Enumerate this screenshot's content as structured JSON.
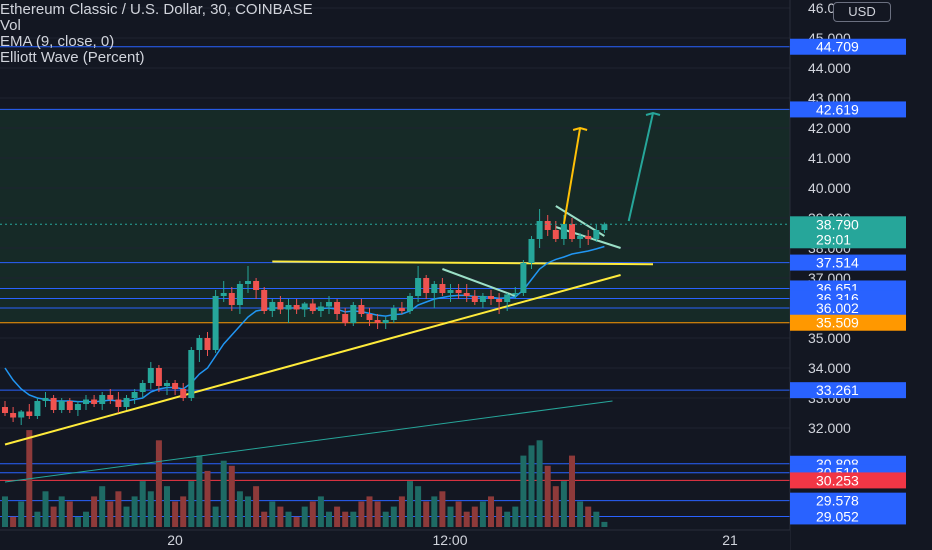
{
  "legend": {
    "title": "Ethereum Classic / U.S. Dollar, 30, COINBASE",
    "vol": "Vol",
    "ema": "EMA (9, close, 0)",
    "elliott": "Elliott Wave (Percent)"
  },
  "currency_button": "USD",
  "colors": {
    "background": "#131722",
    "highlight_zone": "#162a27",
    "up": "#26a69a",
    "down": "#ef5350",
    "hline_blue": "#2962ff",
    "hline_orange": "#ff9800",
    "trend_yellow": "#ffeb3b",
    "ema_blue": "#2196f3",
    "vol_up": "#1e6b65",
    "vol_down": "#8e3a3a"
  },
  "chart_data": {
    "type": "candlestick",
    "symbol": "Ethereum Classic / U.S. Dollar",
    "interval": "30",
    "exchange": "COINBASE",
    "x_ticks": [
      "20",
      "12:00",
      "21"
    ],
    "y_ticks": [
      "32.000",
      "33.000",
      "34.000",
      "35.000",
      "36.000",
      "37.000",
      "38.000",
      "39.000",
      "40.000",
      "41.000",
      "42.000",
      "43.000",
      "44.000",
      "45.000",
      "46.000"
    ],
    "ylim": [
      29.0,
      45.9
    ],
    "current_price": "38.790",
    "countdown": "29:01",
    "price_levels": [
      {
        "label": "44.709",
        "value": 44.709,
        "color": "#2962ff"
      },
      {
        "label": "42.619",
        "value": 42.619,
        "color": "#2962ff"
      },
      {
        "label": "37.514",
        "value": 37.514,
        "color": "#2962ff"
      },
      {
        "label": "36.651",
        "value": 36.651,
        "color": "#2962ff"
      },
      {
        "label": "36.316",
        "value": 36.316,
        "color": "#2962ff"
      },
      {
        "label": "36.002",
        "value": 36.002,
        "color": "#2962ff"
      },
      {
        "label": "35.509",
        "value": 35.509,
        "color": "#ff9800"
      },
      {
        "label": "33.261",
        "value": 33.261,
        "color": "#2962ff"
      },
      {
        "label": "30.808",
        "value": 30.808,
        "color": "#2962ff"
      },
      {
        "label": "30.510",
        "value": 30.51,
        "color": "#2962ff"
      },
      {
        "label": "30.253",
        "value": 30.253,
        "color": "#f23645"
      },
      {
        "label": "29.578",
        "value": 29.578,
        "color": "#2962ff"
      },
      {
        "label": "29.052",
        "value": 29.052,
        "color": "#2962ff"
      }
    ],
    "candles": [
      {
        "o": 32.7,
        "h": 32.9,
        "l": 32.4,
        "c": 32.5
      },
      {
        "o": 32.5,
        "h": 32.7,
        "l": 32.2,
        "c": 32.35
      },
      {
        "o": 32.35,
        "h": 32.6,
        "l": 32.1,
        "c": 32.55
      },
      {
        "o": 32.55,
        "h": 32.8,
        "l": 32.3,
        "c": 32.4
      },
      {
        "o": 32.4,
        "h": 33.0,
        "l": 32.3,
        "c": 32.9
      },
      {
        "o": 32.9,
        "h": 33.2,
        "l": 32.7,
        "c": 33.0
      },
      {
        "o": 33.0,
        "h": 33.1,
        "l": 32.5,
        "c": 32.6
      },
      {
        "o": 32.6,
        "h": 33.0,
        "l": 32.5,
        "c": 32.9
      },
      {
        "o": 32.9,
        "h": 33.0,
        "l": 32.5,
        "c": 32.6
      },
      {
        "o": 32.6,
        "h": 32.9,
        "l": 32.4,
        "c": 32.8
      },
      {
        "o": 32.8,
        "h": 33.1,
        "l": 32.6,
        "c": 32.95
      },
      {
        "o": 32.95,
        "h": 33.1,
        "l": 32.7,
        "c": 32.8
      },
      {
        "o": 32.8,
        "h": 33.2,
        "l": 32.6,
        "c": 33.1
      },
      {
        "o": 33.1,
        "h": 33.3,
        "l": 32.8,
        "c": 32.95
      },
      {
        "o": 32.95,
        "h": 33.2,
        "l": 32.5,
        "c": 32.7
      },
      {
        "o": 32.7,
        "h": 33.1,
        "l": 32.6,
        "c": 33.0
      },
      {
        "o": 33.0,
        "h": 33.3,
        "l": 32.8,
        "c": 33.2
      },
      {
        "o": 33.2,
        "h": 33.6,
        "l": 33.0,
        "c": 33.5
      },
      {
        "o": 33.5,
        "h": 34.2,
        "l": 33.3,
        "c": 34.0
      },
      {
        "o": 34.0,
        "h": 34.1,
        "l": 33.2,
        "c": 33.4
      },
      {
        "o": 33.4,
        "h": 33.6,
        "l": 33.1,
        "c": 33.5
      },
      {
        "o": 33.5,
        "h": 33.6,
        "l": 33.1,
        "c": 33.3
      },
      {
        "o": 33.3,
        "h": 33.5,
        "l": 32.9,
        "c": 33.0
      },
      {
        "o": 33.0,
        "h": 34.7,
        "l": 32.9,
        "c": 34.6
      },
      {
        "o": 34.6,
        "h": 35.1,
        "l": 34.2,
        "c": 35.0
      },
      {
        "o": 35.0,
        "h": 35.2,
        "l": 34.4,
        "c": 34.6
      },
      {
        "o": 34.6,
        "h": 36.6,
        "l": 34.5,
        "c": 36.4
      },
      {
        "o": 36.4,
        "h": 36.9,
        "l": 36.2,
        "c": 36.5
      },
      {
        "o": 36.5,
        "h": 36.7,
        "l": 35.9,
        "c": 36.1
      },
      {
        "o": 36.1,
        "h": 36.9,
        "l": 35.8,
        "c": 36.8
      },
      {
        "o": 36.8,
        "h": 37.4,
        "l": 36.5,
        "c": 36.9
      },
      {
        "o": 36.9,
        "h": 37.0,
        "l": 36.3,
        "c": 36.6
      },
      {
        "o": 36.6,
        "h": 36.7,
        "l": 35.8,
        "c": 35.9
      },
      {
        "o": 35.9,
        "h": 36.3,
        "l": 35.7,
        "c": 36.2
      },
      {
        "o": 36.2,
        "h": 36.4,
        "l": 35.8,
        "c": 35.95
      },
      {
        "o": 35.95,
        "h": 36.3,
        "l": 35.5,
        "c": 36.1
      },
      {
        "o": 36.1,
        "h": 36.3,
        "l": 35.8,
        "c": 35.95
      },
      {
        "o": 35.95,
        "h": 36.2,
        "l": 35.7,
        "c": 36.15
      },
      {
        "o": 36.15,
        "h": 36.3,
        "l": 35.8,
        "c": 35.9
      },
      {
        "o": 35.9,
        "h": 36.2,
        "l": 35.7,
        "c": 36.05
      },
      {
        "o": 36.05,
        "h": 36.4,
        "l": 35.8,
        "c": 36.2
      },
      {
        "o": 36.2,
        "h": 36.3,
        "l": 35.6,
        "c": 35.8
      },
      {
        "o": 35.8,
        "h": 36.0,
        "l": 35.4,
        "c": 35.5
      },
      {
        "o": 35.5,
        "h": 36.2,
        "l": 35.4,
        "c": 36.1
      },
      {
        "o": 36.1,
        "h": 36.3,
        "l": 35.7,
        "c": 35.8
      },
      {
        "o": 35.8,
        "h": 36.0,
        "l": 35.4,
        "c": 35.6
      },
      {
        "o": 35.6,
        "h": 35.8,
        "l": 35.3,
        "c": 35.5
      },
      {
        "o": 35.5,
        "h": 35.7,
        "l": 35.3,
        "c": 35.6
      },
      {
        "o": 35.6,
        "h": 36.1,
        "l": 35.5,
        "c": 36.0
      },
      {
        "o": 36.0,
        "h": 36.2,
        "l": 35.8,
        "c": 35.9
      },
      {
        "o": 35.9,
        "h": 36.5,
        "l": 35.8,
        "c": 36.4
      },
      {
        "o": 36.4,
        "h": 37.4,
        "l": 36.2,
        "c": 37.0
      },
      {
        "o": 37.0,
        "h": 37.1,
        "l": 36.3,
        "c": 36.5
      },
      {
        "o": 36.5,
        "h": 36.9,
        "l": 36.0,
        "c": 36.8
      },
      {
        "o": 36.8,
        "h": 37.0,
        "l": 36.4,
        "c": 36.5
      },
      {
        "o": 36.5,
        "h": 36.8,
        "l": 36.2,
        "c": 36.6
      },
      {
        "o": 36.6,
        "h": 36.8,
        "l": 36.3,
        "c": 36.5
      },
      {
        "o": 36.5,
        "h": 36.8,
        "l": 36.2,
        "c": 36.4
      },
      {
        "o": 36.4,
        "h": 36.6,
        "l": 36.1,
        "c": 36.2
      },
      {
        "o": 36.2,
        "h": 36.5,
        "l": 36.0,
        "c": 36.4
      },
      {
        "o": 36.4,
        "h": 36.6,
        "l": 36.1,
        "c": 36.3
      },
      {
        "o": 36.3,
        "h": 36.5,
        "l": 35.8,
        "c": 36.2
      },
      {
        "o": 36.2,
        "h": 36.5,
        "l": 35.9,
        "c": 36.45
      },
      {
        "o": 36.45,
        "h": 36.7,
        "l": 36.3,
        "c": 36.5
      },
      {
        "o": 36.5,
        "h": 37.6,
        "l": 36.4,
        "c": 37.5
      },
      {
        "o": 37.5,
        "h": 38.4,
        "l": 37.3,
        "c": 38.3
      },
      {
        "o": 38.3,
        "h": 39.3,
        "l": 38.0,
        "c": 38.9
      },
      {
        "o": 38.9,
        "h": 39.1,
        "l": 38.4,
        "c": 38.6
      },
      {
        "o": 38.6,
        "h": 38.9,
        "l": 38.2,
        "c": 38.3
      },
      {
        "o": 38.3,
        "h": 39.1,
        "l": 38.1,
        "c": 38.8
      },
      {
        "o": 38.8,
        "h": 39.0,
        "l": 38.2,
        "c": 38.3
      },
      {
        "o": 38.3,
        "h": 38.5,
        "l": 38.0,
        "c": 38.4
      },
      {
        "o": 38.4,
        "h": 38.6,
        "l": 38.1,
        "c": 38.3
      },
      {
        "o": 38.3,
        "h": 38.8,
        "l": 38.2,
        "c": 38.6
      },
      {
        "o": 38.6,
        "h": 38.85,
        "l": 38.5,
        "c": 38.79
      }
    ],
    "volume": [
      0.6,
      0.2,
      0.5,
      1.9,
      0.3,
      0.7,
      0.4,
      0.6,
      0.5,
      0.2,
      0.3,
      0.6,
      0.8,
      0.5,
      0.7,
      0.4,
      0.6,
      0.9,
      0.7,
      1.7,
      0.8,
      0.5,
      0.6,
      0.9,
      1.4,
      1.1,
      0.4,
      1.3,
      1.2,
      0.7,
      0.6,
      0.8,
      0.3,
      0.5,
      0.4,
      0.3,
      0.2,
      0.4,
      0.5,
      0.6,
      0.3,
      0.4,
      0.3,
      0.3,
      0.5,
      0.6,
      0.5,
      0.3,
      0.4,
      0.6,
      0.9,
      0.8,
      0.5,
      0.6,
      0.7,
      0.4,
      0.5,
      0.3,
      0.4,
      0.5,
      0.6,
      0.4,
      0.3,
      0.4,
      1.4,
      1.6,
      1.7,
      1.2,
      0.8,
      0.9,
      1.4,
      0.5,
      0.4,
      0.3,
      0.1
    ],
    "volume_colors": [
      1,
      0,
      1,
      0,
      1,
      1,
      0,
      1,
      0,
      1,
      1,
      0,
      1,
      0,
      0,
      1,
      1,
      1,
      1,
      0,
      1,
      0,
      0,
      1,
      1,
      0,
      1,
      1,
      0,
      1,
      1,
      0,
      0,
      1,
      0,
      1,
      0,
      1,
      0,
      1,
      1,
      0,
      0,
      1,
      0,
      0,
      0,
      1,
      1,
      0,
      1,
      1,
      0,
      1,
      0,
      1,
      0,
      0,
      0,
      1,
      0,
      0,
      1,
      1,
      1,
      1,
      1,
      0,
      0,
      1,
      0,
      1,
      0,
      1,
      1
    ],
    "ema": [
      34.0,
      33.6,
      33.3,
      33.1,
      33.0,
      32.95,
      32.9,
      32.9,
      32.9,
      32.88,
      32.88,
      32.87,
      32.9,
      32.93,
      32.9,
      32.9,
      32.95,
      33.0,
      33.2,
      33.3,
      33.35,
      33.35,
      33.3,
      33.5,
      33.8,
      34.0,
      34.4,
      34.8,
      35.1,
      35.4,
      35.7,
      35.9,
      35.95,
      36.0,
      36.0,
      36.0,
      36.0,
      36.0,
      35.98,
      35.98,
      36.0,
      35.96,
      35.87,
      35.9,
      35.88,
      35.82,
      35.76,
      35.73,
      35.78,
      35.8,
      35.9,
      36.1,
      36.2,
      36.3,
      36.35,
      36.4,
      36.42,
      36.42,
      36.38,
      36.38,
      36.36,
      36.32,
      36.34,
      36.37,
      36.6,
      36.95,
      37.3,
      37.5,
      37.62,
      37.7,
      37.8,
      37.85,
      37.9,
      37.97,
      38.05
    ],
    "trendlines": [
      {
        "name": "ascending-support",
        "x": [
          0,
          76
        ],
        "y": [
          31.45,
          37.1
        ],
        "color": "#ffeb3b"
      },
      {
        "name": "horizontal-resistance",
        "x": [
          33,
          80
        ],
        "y": [
          37.55,
          37.46
        ],
        "color": "#ffeb3b"
      },
      {
        "name": "green-ray",
        "x": [
          0,
          75
        ],
        "y": [
          30.2,
          32.9
        ],
        "color": "#26a69a"
      },
      {
        "name": "flag-top",
        "x": [
          68,
          74
        ],
        "y": [
          39.4,
          38.4
        ],
        "color": "#9bdfc7"
      },
      {
        "name": "flag-bottom",
        "x": [
          68,
          76
        ],
        "y": [
          38.7,
          38.0
        ],
        "color": "#9bdfc7"
      },
      {
        "name": "small-retrace",
        "x": [
          54,
          63
        ],
        "y": [
          37.3,
          36.4
        ],
        "color": "#9bdfc7"
      }
    ],
    "arrows": [
      {
        "name": "yellow-target-arrow",
        "x": [
          69,
          71
        ],
        "y": [
          38.8,
          42.0
        ],
        "color": "#ffc107"
      },
      {
        "name": "green-target-arrow",
        "x": [
          77,
          80
        ],
        "y": [
          38.9,
          42.5
        ],
        "color": "#26a69a"
      }
    ]
  }
}
